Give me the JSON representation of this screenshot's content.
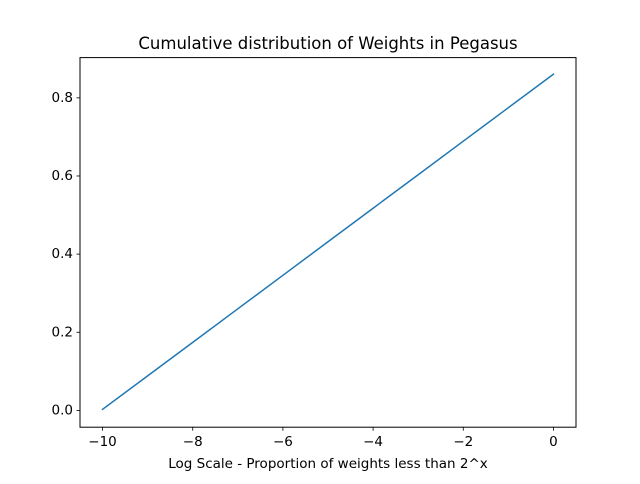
{
  "chart_data": {
    "type": "line",
    "title": "Cumulative distribution of Weights in Pegasus",
    "xlabel": "Log Scale - Proportion of weights less than 2^x",
    "ylabel": "",
    "xlim": [
      -10.5,
      0.5
    ],
    "ylim": [
      -0.043,
      0.903
    ],
    "x_ticks": [
      -10,
      -8,
      -6,
      -4,
      -2,
      0
    ],
    "x_tick_labels": [
      "−10",
      "−8",
      "−6",
      "−4",
      "−2",
      "0"
    ],
    "y_ticks": [
      0.0,
      0.2,
      0.4,
      0.6,
      0.8
    ],
    "y_tick_labels": [
      "0.0",
      "0.2",
      "0.4",
      "0.6",
      "0.8"
    ],
    "grid": false,
    "legend": "none",
    "series": [
      {
        "color": "#1f77b4",
        "x": [
          -10,
          -9,
          -8,
          -7,
          -6,
          -5,
          -4,
          -3,
          -2,
          -1,
          0
        ],
        "y": [
          0.0026,
          0.0884,
          0.1742,
          0.26,
          0.3458,
          0.4316,
          0.5174,
          0.6032,
          0.689,
          0.7748,
          0.8606
        ]
      }
    ]
  }
}
